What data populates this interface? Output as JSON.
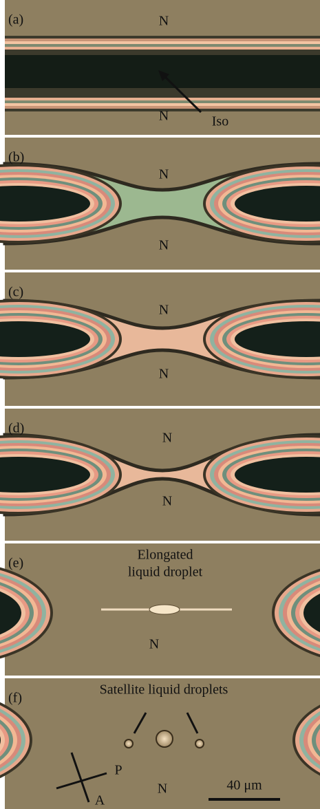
{
  "panels": [
    {
      "label": "(a)",
      "annotations": [
        "N",
        "N",
        "Iso"
      ]
    },
    {
      "label": "(b)",
      "annotations": [
        "N",
        "N"
      ]
    },
    {
      "label": "(c)",
      "annotations": [
        "N",
        "N"
      ]
    },
    {
      "label": "(d)",
      "annotations": [
        "N",
        "N"
      ]
    },
    {
      "label": "(e)",
      "annotations": [
        "Elongated",
        "liquid droplet",
        "N"
      ]
    },
    {
      "label": "(f)",
      "annotations": [
        "Satellite liquid droplets",
        "P",
        "A",
        "N",
        "40 μm"
      ]
    }
  ]
}
